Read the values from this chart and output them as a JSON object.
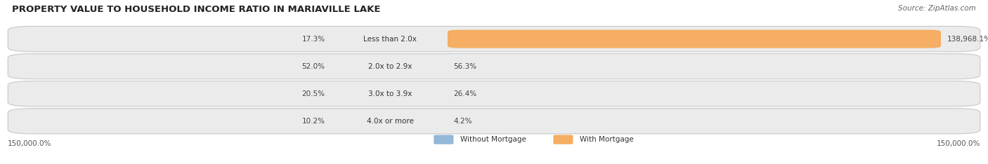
{
  "title": "PROPERTY VALUE TO HOUSEHOLD INCOME RATIO IN MARIAVILLE LAKE",
  "source": "Source: ZipAtlas.com",
  "categories": [
    "Less than 2.0x",
    "2.0x to 2.9x",
    "3.0x to 3.9x",
    "4.0x or more"
  ],
  "without_mortgage": [
    17.3,
    52.0,
    20.5,
    10.2
  ],
  "with_mortgage": [
    138968.1,
    56.3,
    26.4,
    4.2
  ],
  "without_mortgage_color": "#93b8d8",
  "with_mortgage_color": "#f5ae63",
  "bar_bg_color": "#ebebeb",
  "bar_border_color": "#cccccc",
  "xlabel_left": "150,000.0%",
  "xlabel_right": "150,000.0%",
  "legend_without": "Without Mortgage",
  "legend_with": "With Mortgage",
  "background_color": "#ffffff",
  "fig_width": 14.06,
  "fig_height": 2.34,
  "max_val": 150000.0,
  "title_fontsize": 9.5,
  "source_fontsize": 7.5,
  "label_fontsize": 7.5,
  "pct_fontsize": 7.5
}
